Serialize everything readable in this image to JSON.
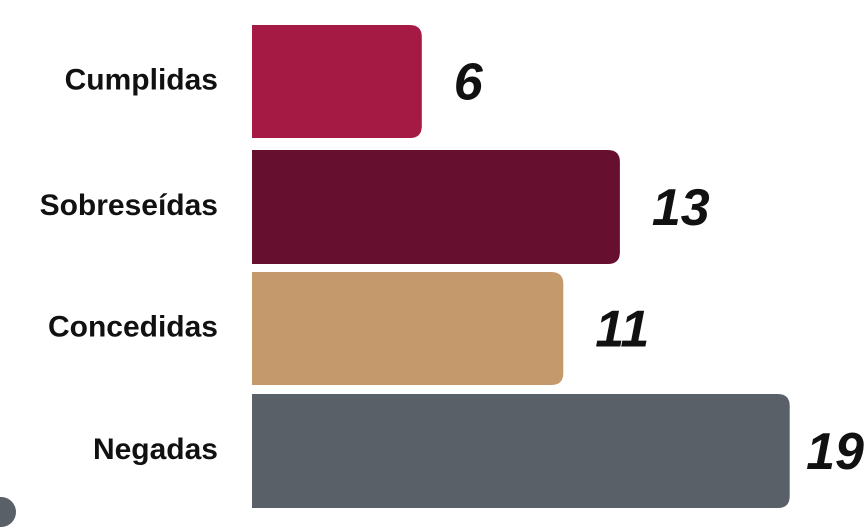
{
  "chart_data": {
    "type": "bar",
    "orientation": "horizontal",
    "categories": [
      "Cumplidas",
      "Sobreseídas",
      "Concedidas",
      "Negadas"
    ],
    "values": [
      6,
      13,
      11,
      19
    ],
    "value_labels": [
      "6",
      "13",
      "11",
      "19"
    ],
    "colors": [
      "#a51a45",
      "#660f2f",
      "#c49a6c",
      "#5a6068"
    ],
    "title": "",
    "xlabel": "",
    "ylabel": "",
    "grid": false,
    "legend": "none"
  }
}
